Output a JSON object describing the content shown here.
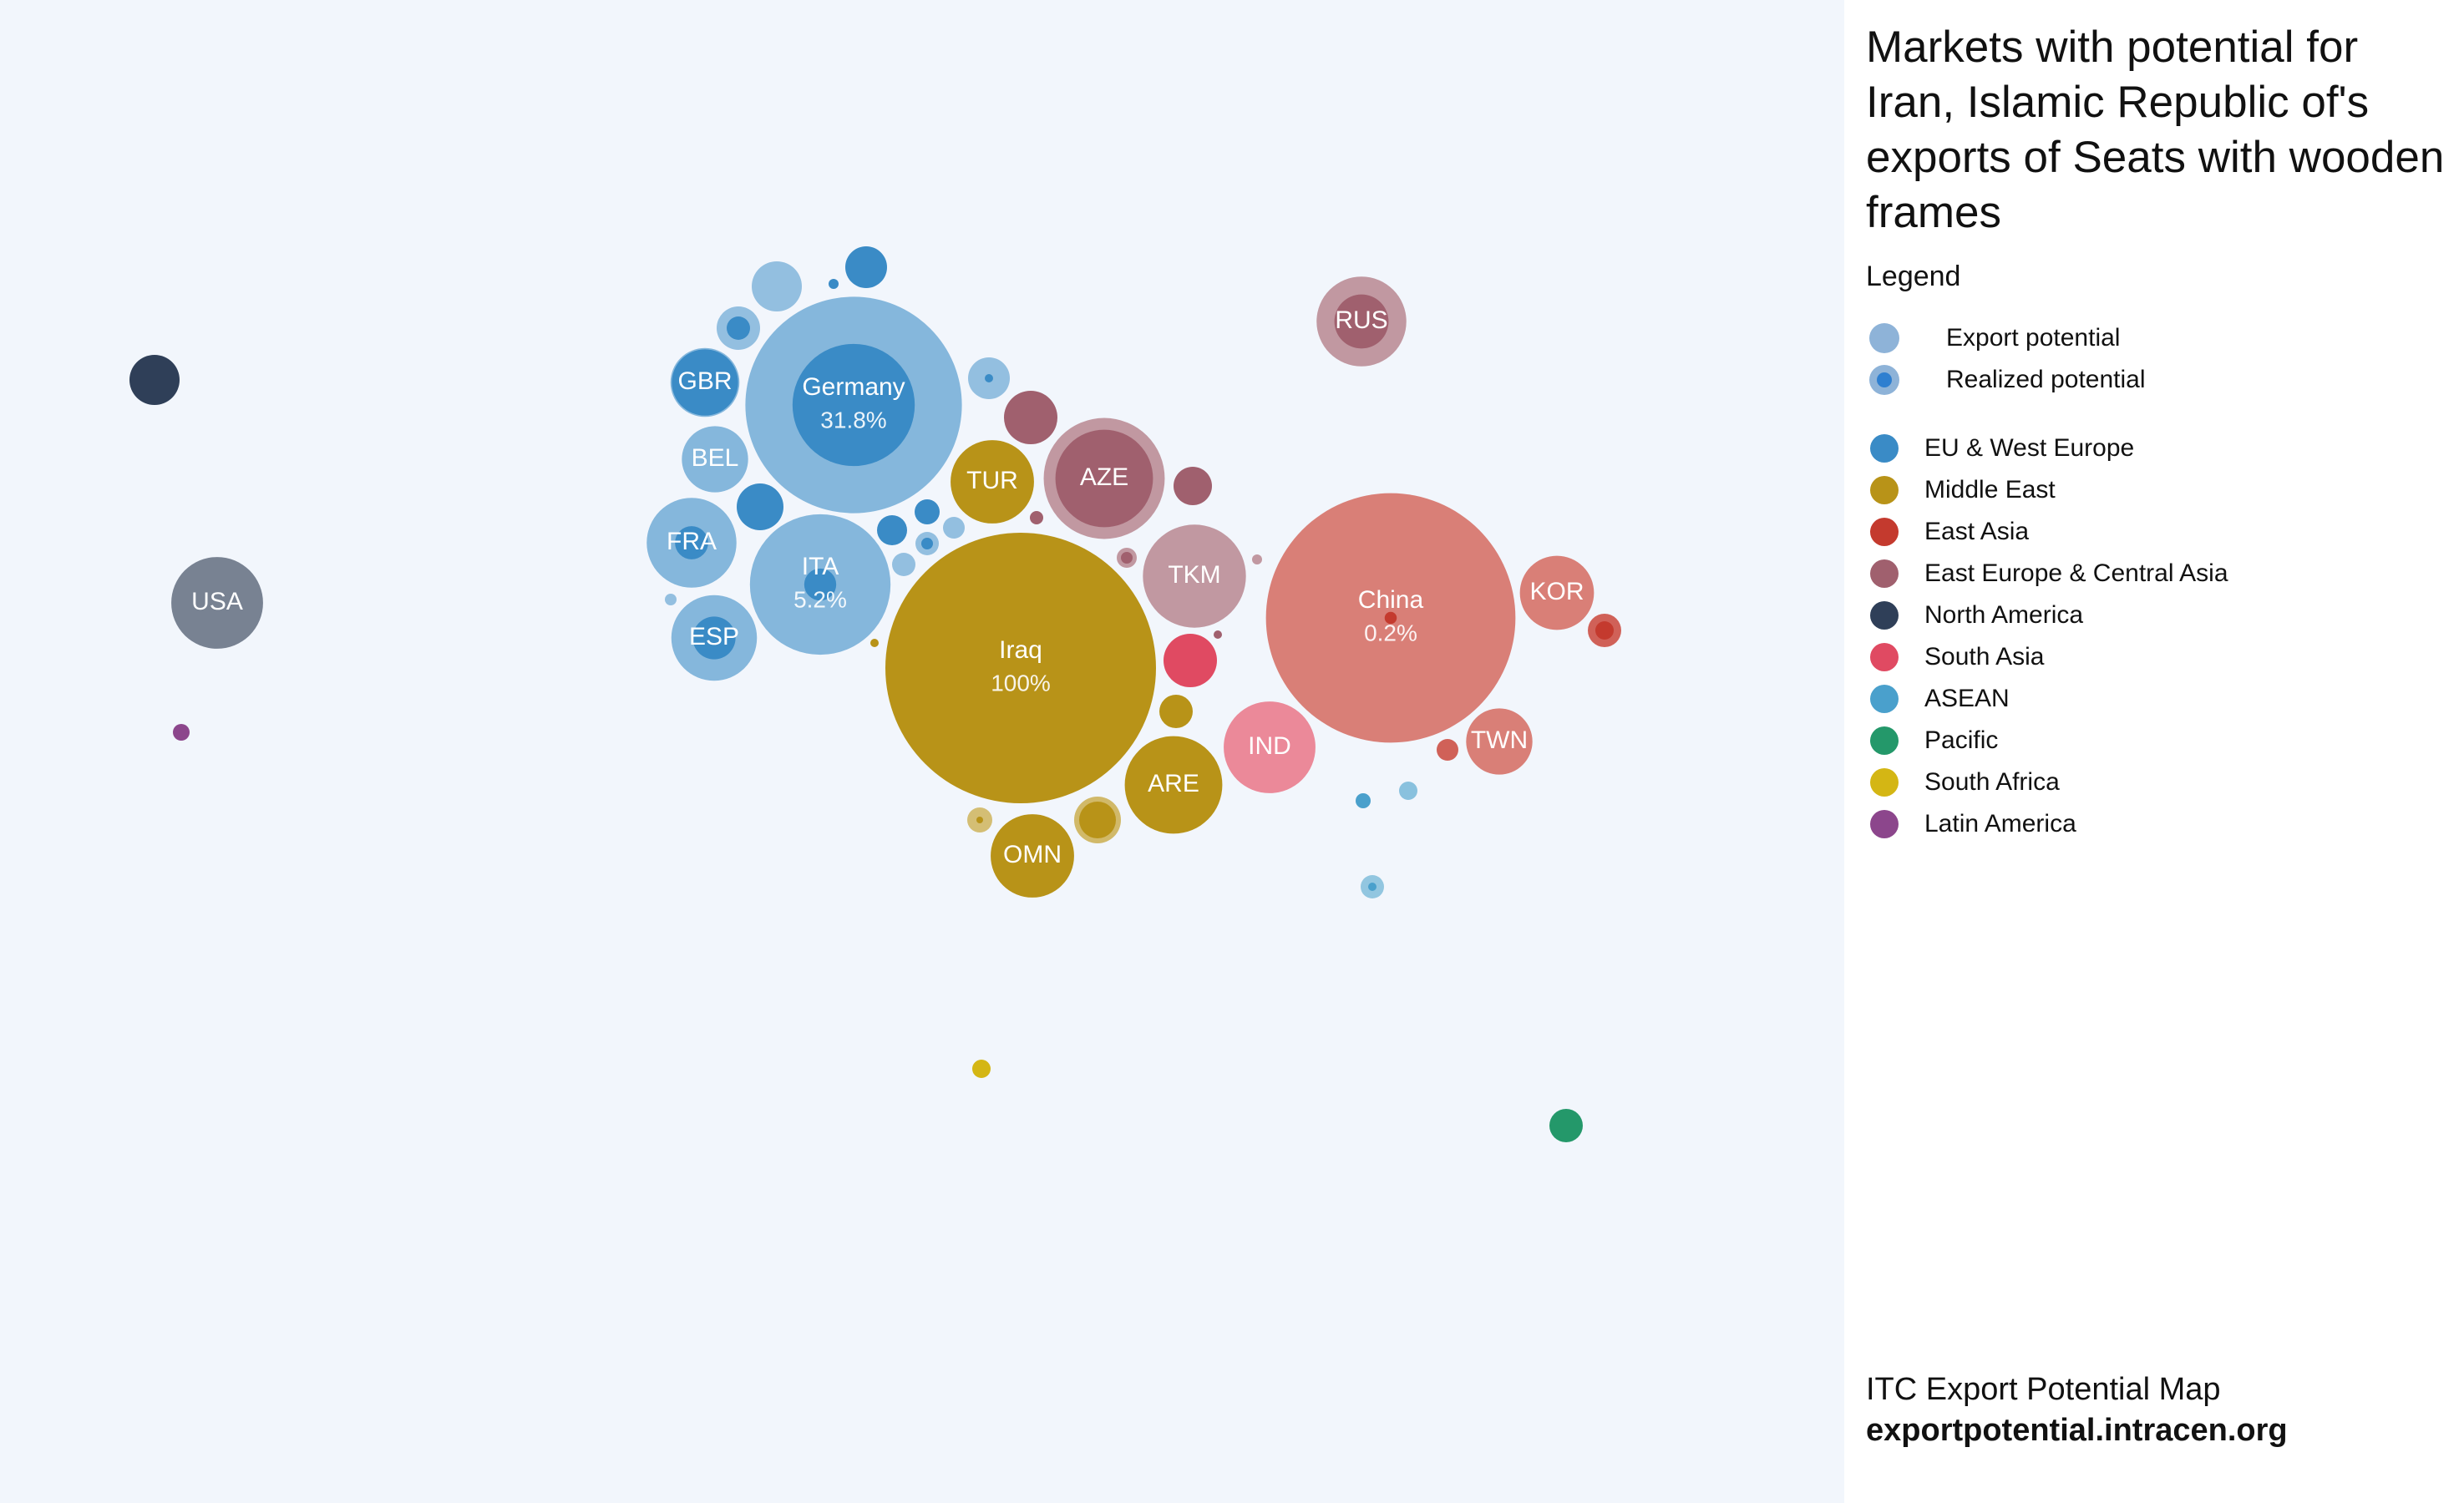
{
  "title": "Markets with potential for Iran, Islamic Republic of's exports of Seats with wooden frames",
  "legend": {
    "heading": "Legend",
    "potential_items": [
      {
        "label": "Export potential",
        "kind": "export"
      },
      {
        "label": "Realized potential",
        "kind": "realized"
      }
    ],
    "regions": [
      {
        "label": "EU & West Europe",
        "color": "#3a8bc6"
      },
      {
        "label": "Middle East",
        "color": "#b89318"
      },
      {
        "label": "East Asia",
        "color": "#c43a2e"
      },
      {
        "label": "East Europe & Central Asia",
        "color": "#a0606e"
      },
      {
        "label": "North America",
        "color": "#2f3f58"
      },
      {
        "label": "South Asia",
        "color": "#e04a62"
      },
      {
        "label": "ASEAN",
        "color": "#4aa0cc"
      },
      {
        "label": "Pacific",
        "color": "#24986a"
      },
      {
        "label": "South Africa",
        "color": "#d4b614"
      },
      {
        "label": "Latin America",
        "color": "#8c468c"
      }
    ]
  },
  "footer": {
    "line1": "ITC Export Potential Map",
    "line2": "exportpotential.intracen.org"
  },
  "chart_data": {
    "type": "bubble",
    "description_units": "bubble area ~ export potential; inner circle ~ realized potential; percent = share of potential realized",
    "markets": [
      {
        "code": "Iraq",
        "region": "Middle East",
        "potential": 100,
        "realized": 100,
        "percent": "100%"
      },
      {
        "code": "China",
        "region": "East Asia",
        "potential": 85,
        "realized": 0.2,
        "percent": "0.2%"
      },
      {
        "code": "Germany",
        "region": "EU & West Europe",
        "potential": 64,
        "realized": 20.4,
        "percent": "31.8%"
      },
      {
        "code": "ITA",
        "region": "EU & West Europe",
        "potential": 27,
        "realized": 1.4,
        "percent": "5.2%"
      },
      {
        "code": "AZE",
        "region": "East Europe & Central Asia",
        "potential": 20,
        "realized": 13
      },
      {
        "code": "TKM",
        "region": "East Europe & Central Asia",
        "potential": 14.5,
        "realized": 0
      },
      {
        "code": "ARE",
        "region": "Middle East",
        "potential": 13,
        "realized": 13
      },
      {
        "code": "IND",
        "region": "South Asia",
        "potential": 11.5,
        "realized": 0
      },
      {
        "code": "USA",
        "region": "North America",
        "potential": 11.5,
        "realized": 0
      },
      {
        "code": "RUS",
        "region": "East Europe & Central Asia",
        "potential": 11,
        "realized": 4
      },
      {
        "code": "FRA",
        "region": "EU & West Europe",
        "potential": 11,
        "realized": 1.5
      },
      {
        "code": "ESP",
        "region": "EU & West Europe",
        "potential": 10,
        "realized": 2.5
      },
      {
        "code": "TUR",
        "region": "Middle East",
        "potential": 9.5,
        "realized": 9.5
      },
      {
        "code": "OMN",
        "region": "Middle East",
        "potential": 9.5,
        "realized": 9.5
      },
      {
        "code": "KOR",
        "region": "East Asia",
        "potential": 7.5,
        "realized": 0
      },
      {
        "code": "GBR",
        "region": "EU & West Europe",
        "potential": 6.5,
        "realized": 6
      },
      {
        "code": "TWN",
        "region": "East Asia",
        "potential": 6,
        "realized": 0
      },
      {
        "code": "BEL",
        "region": "EU & West Europe",
        "potential": 6,
        "realized": 0
      }
    ]
  }
}
